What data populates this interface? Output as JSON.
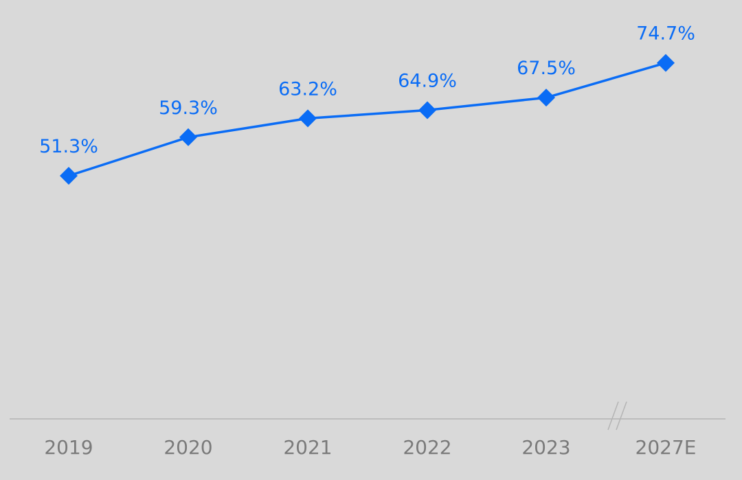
{
  "chart_data": {
    "type": "line",
    "categories": [
      "2019",
      "2020",
      "2021",
      "2022",
      "2023",
      "2027E"
    ],
    "values": [
      51.3,
      59.3,
      63.2,
      64.9,
      67.5,
      74.7
    ],
    "data_labels": [
      "51.3%",
      "59.3%",
      "63.2%",
      "64.9%",
      "67.5%",
      "74.7%"
    ],
    "title": "",
    "xlabel": "",
    "ylabel": "",
    "ylim": [
      0,
      80
    ],
    "grid": false,
    "y_axis_visible": false,
    "axis_break_before": "2027E",
    "marker": "diamond-icon",
    "colors": {
      "background": "#d9d9d9",
      "series": "#0a6cf5",
      "axis": "#b4b4b4",
      "tick_labels": "#7a7a7a"
    }
  }
}
